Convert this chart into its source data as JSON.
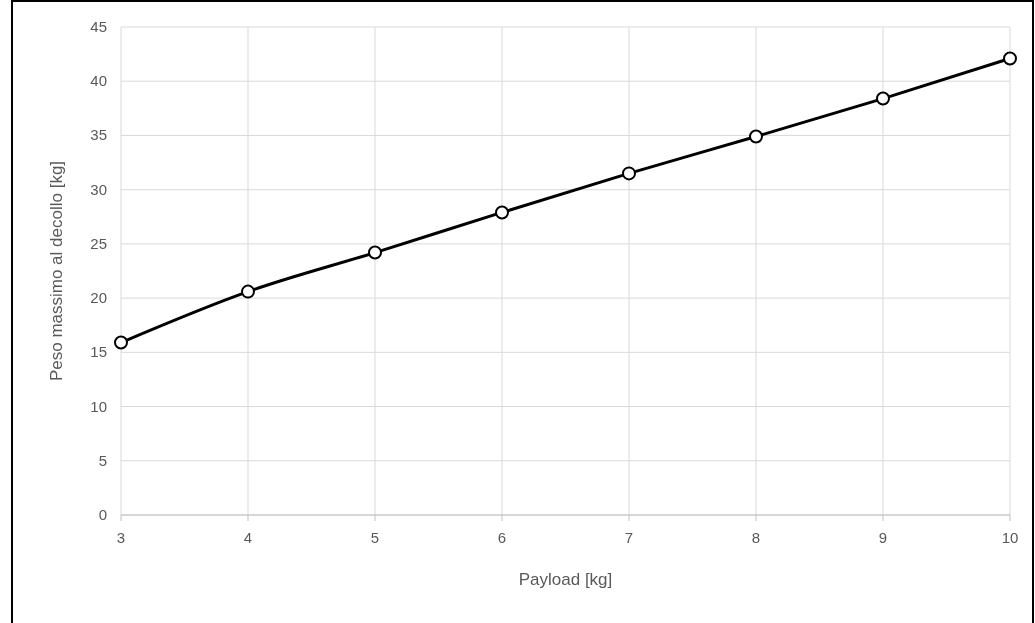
{
  "chart_data": {
    "type": "line",
    "xlabel": "Payload [kg]",
    "ylabel": "Peso massimo al decollo [kg]",
    "x": [
      3,
      4,
      5,
      6,
      7,
      8,
      9,
      10
    ],
    "series": [
      {
        "color": "#000000",
        "values": [
          15.9,
          20.6,
          24.2,
          27.9,
          31.5,
          34.9,
          38.4,
          42.1
        ]
      }
    ],
    "xlim": [
      3,
      10
    ],
    "xticks": [
      3,
      4,
      5,
      6,
      7,
      8,
      9,
      10
    ],
    "ylim": [
      0,
      45
    ],
    "yticks": [
      0,
      5,
      10,
      15,
      20,
      25,
      30,
      35,
      40,
      45
    ],
    "grid": true,
    "marker": "circle",
    "line_style": "solid"
  }
}
